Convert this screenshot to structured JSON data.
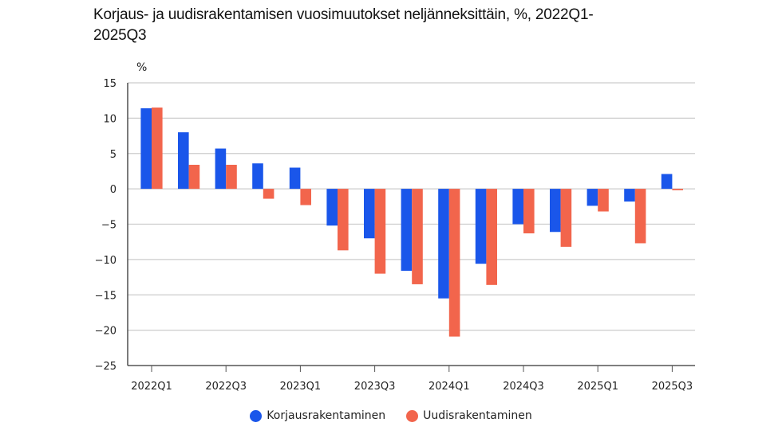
{
  "chart_data": {
    "type": "bar",
    "title": "Korjaus- ja uudisrakentamisen vuosimuutokset neljänneksittäin, %, 2022Q1-2025Q3",
    "title_lines": [
      "Korjaus- ja uudisrakentamisen vuosimuutokset neljänneksittäin, %, 2022Q1-",
      "2025Q3"
    ],
    "ylabel": "%",
    "xlabel": "",
    "ylim": [
      -25,
      15
    ],
    "yticks": [
      15,
      10,
      5,
      0,
      -5,
      -10,
      -15,
      -20,
      -25
    ],
    "ytick_labels": [
      "15",
      "10",
      "5",
      "0",
      "−5",
      "−10",
      "−15",
      "−20",
      "−25"
    ],
    "grid": true,
    "legend_position": "bottom",
    "categories": [
      "2022Q1",
      "2022Q2",
      "2022Q3",
      "2022Q4",
      "2023Q1",
      "2023Q2",
      "2023Q3",
      "2023Q4",
      "2024Q1",
      "2024Q2",
      "2024Q3",
      "2024Q4",
      "2025Q1",
      "2025Q2",
      "2025Q3"
    ],
    "xtick_labels": [
      "2022Q1",
      "2022Q3",
      "2023Q1",
      "2023Q3",
      "2024Q1",
      "2024Q3",
      "2025Q1",
      "2025Q3"
    ],
    "series": [
      {
        "name": "Korjausrakentaminen",
        "color": "#1a56ea",
        "values": [
          11.4,
          8.0,
          5.7,
          3.6,
          3.0,
          -5.2,
          -7.0,
          -11.6,
          -15.5,
          -10.6,
          -5.0,
          -6.1,
          -2.4,
          -1.8,
          2.1
        ]
      },
      {
        "name": "Uudisrakentaminen",
        "color": "#f2654c",
        "values": [
          11.5,
          3.4,
          3.4,
          -1.4,
          -2.3,
          -8.7,
          -12.0,
          -13.5,
          -20.9,
          -13.6,
          -6.3,
          -8.2,
          -3.2,
          -7.7,
          -0.2
        ]
      }
    ]
  }
}
